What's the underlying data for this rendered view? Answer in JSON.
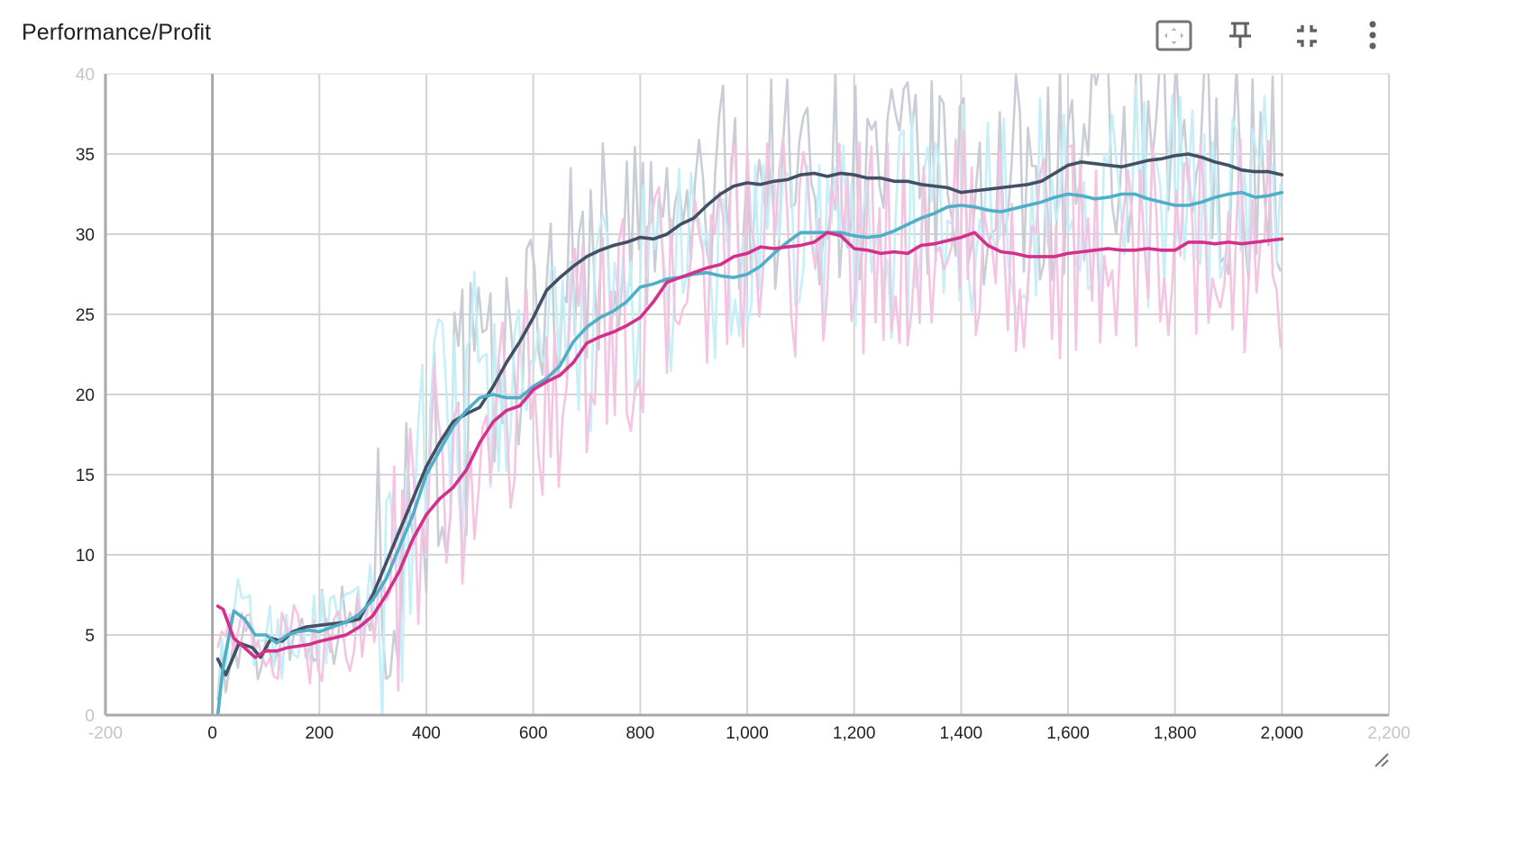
{
  "card": {
    "title": "Performance/Profit"
  },
  "toolbar": {
    "buttons": [
      {
        "name": "fit-domain-button",
        "icon": "fit-to-data-icon"
      },
      {
        "name": "pin-card-button",
        "icon": "pin-icon"
      },
      {
        "name": "collapse-card-button",
        "icon": "fullscreen-exit-icon"
      },
      {
        "name": "more-options-button",
        "icon": "more-vert-icon"
      }
    ]
  },
  "chart_data": {
    "type": "line",
    "title": "Performance/Profit",
    "xlabel": "",
    "ylabel": "",
    "xlim": [
      -200,
      2200
    ],
    "ylim": [
      0,
      40
    ],
    "x_ticks": [
      {
        "value": -200,
        "label": "-200",
        "faded": true
      },
      {
        "value": 0,
        "label": "0"
      },
      {
        "value": 200,
        "label": "200"
      },
      {
        "value": 400,
        "label": "400"
      },
      {
        "value": 600,
        "label": "600"
      },
      {
        "value": 800,
        "label": "800"
      },
      {
        "value": 1000,
        "label": "1,000"
      },
      {
        "value": 1200,
        "label": "1,200"
      },
      {
        "value": 1400,
        "label": "1,400"
      },
      {
        "value": 1600,
        "label": "1,600"
      },
      {
        "value": 1800,
        "label": "1,800"
      },
      {
        "value": 2000,
        "label": "2,000"
      },
      {
        "value": 2200,
        "label": "2,200",
        "faded": true
      }
    ],
    "y_ticks": [
      {
        "value": 0,
        "label": "0",
        "faded": true
      },
      {
        "value": 5,
        "label": "5"
      },
      {
        "value": 10,
        "label": "10"
      },
      {
        "value": 15,
        "label": "15"
      },
      {
        "value": 20,
        "label": "20"
      },
      {
        "value": 25,
        "label": "25"
      },
      {
        "value": 30,
        "label": "30"
      },
      {
        "value": 35,
        "label": "35"
      },
      {
        "value": 40,
        "label": "40",
        "faded": true
      }
    ],
    "grid": true,
    "legend": "none",
    "smoothed_series": [
      {
        "color": "#425066",
        "raw_color": "#c6cad3",
        "x": [
          10,
          25,
          50,
          75,
          90,
          110,
          130,
          150,
          175,
          200,
          225,
          250,
          275,
          300,
          325,
          350,
          375,
          400,
          425,
          450,
          475,
          500,
          525,
          550,
          575,
          600,
          625,
          650,
          675,
          700,
          725,
          750,
          775,
          800,
          825,
          850,
          875,
          900,
          925,
          950,
          975,
          1000,
          1025,
          1050,
          1075,
          1100,
          1125,
          1150,
          1175,
          1200,
          1225,
          1250,
          1275,
          1300,
          1325,
          1350,
          1375,
          1400,
          1425,
          1450,
          1475,
          1500,
          1525,
          1550,
          1575,
          1600,
          1625,
          1650,
          1675,
          1700,
          1725,
          1750,
          1775,
          1800,
          1825,
          1850,
          1875,
          1900,
          1925,
          1950,
          1975,
          2000
        ],
        "y": [
          3.5,
          2.5,
          4.5,
          4.2,
          3.6,
          4.8,
          4.6,
          5.2,
          5.5,
          5.6,
          5.7,
          5.8,
          6.0,
          7.5,
          9.5,
          11.5,
          13.5,
          15.5,
          17.0,
          18.3,
          18.8,
          19.2,
          20.5,
          22.0,
          23.3,
          24.8,
          26.5,
          27.3,
          28.0,
          28.6,
          29.0,
          29.3,
          29.5,
          29.8,
          29.7,
          30.0,
          30.6,
          31.0,
          31.8,
          32.5,
          33.0,
          33.2,
          33.1,
          33.3,
          33.4,
          33.7,
          33.8,
          33.6,
          33.8,
          33.7,
          33.5,
          33.5,
          33.3,
          33.3,
          33.1,
          33.0,
          32.9,
          32.6,
          32.7,
          32.8,
          32.9,
          33.0,
          33.1,
          33.3,
          33.8,
          34.3,
          34.5,
          34.4,
          34.3,
          34.2,
          34.4,
          34.6,
          34.7,
          34.9,
          35.0,
          34.8,
          34.5,
          34.3,
          34.0,
          33.9,
          33.9,
          33.7
        ]
      },
      {
        "color": "#4eafc6",
        "raw_color": "#c3eef7",
        "x": [
          10,
          20,
          40,
          60,
          80,
          100,
          120,
          140,
          160,
          180,
          200,
          225,
          250,
          275,
          300,
          325,
          350,
          375,
          400,
          425,
          450,
          475,
          500,
          525,
          550,
          575,
          600,
          625,
          650,
          675,
          700,
          725,
          750,
          775,
          800,
          825,
          850,
          875,
          900,
          925,
          950,
          975,
          1000,
          1025,
          1050,
          1075,
          1100,
          1125,
          1150,
          1175,
          1200,
          1225,
          1250,
          1275,
          1300,
          1325,
          1350,
          1375,
          1400,
          1425,
          1450,
          1475,
          1500,
          1525,
          1550,
          1575,
          1600,
          1625,
          1650,
          1675,
          1700,
          1725,
          1750,
          1775,
          1800,
          1825,
          1850,
          1875,
          1900,
          1925,
          1950,
          1975,
          2000
        ],
        "y": [
          0.0,
          3.0,
          6.5,
          6.0,
          5.0,
          5.0,
          4.5,
          5.0,
          5.2,
          5.3,
          5.2,
          5.5,
          5.8,
          6.3,
          7.2,
          8.5,
          10.5,
          12.5,
          15.0,
          16.5,
          18.0,
          19.0,
          19.8,
          20.0,
          19.8,
          19.8,
          20.5,
          21.0,
          21.8,
          23.3,
          24.2,
          24.8,
          25.2,
          25.8,
          26.7,
          26.9,
          27.2,
          27.3,
          27.5,
          27.6,
          27.4,
          27.3,
          27.5,
          28.0,
          28.8,
          29.5,
          30.1,
          30.1,
          30.1,
          30.1,
          29.9,
          29.8,
          29.9,
          30.2,
          30.6,
          31.0,
          31.3,
          31.7,
          31.8,
          31.7,
          31.5,
          31.4,
          31.6,
          31.8,
          32.0,
          32.3,
          32.5,
          32.4,
          32.2,
          32.3,
          32.5,
          32.5,
          32.2,
          32.0,
          31.8,
          31.8,
          32.0,
          32.3,
          32.5,
          32.6,
          32.3,
          32.4,
          32.6
        ]
      },
      {
        "color": "#d2308b",
        "raw_color": "#f2c2e0",
        "x": [
          10,
          20,
          40,
          60,
          80,
          100,
          120,
          140,
          160,
          180,
          200,
          225,
          250,
          275,
          300,
          325,
          350,
          375,
          400,
          425,
          450,
          475,
          500,
          525,
          550,
          575,
          600,
          625,
          650,
          675,
          700,
          725,
          750,
          775,
          800,
          825,
          850,
          875,
          900,
          925,
          950,
          975,
          1000,
          1025,
          1050,
          1075,
          1100,
          1125,
          1150,
          1175,
          1200,
          1225,
          1250,
          1275,
          1300,
          1325,
          1350,
          1375,
          1400,
          1425,
          1450,
          1475,
          1500,
          1525,
          1550,
          1575,
          1600,
          1625,
          1650,
          1675,
          1700,
          1725,
          1750,
          1775,
          1800,
          1825,
          1850,
          1875,
          1900,
          1925,
          1950,
          1975,
          2000
        ],
        "y": [
          6.8,
          6.6,
          4.8,
          4.2,
          3.6,
          4.0,
          4.0,
          4.2,
          4.3,
          4.4,
          4.6,
          4.8,
          5.0,
          5.5,
          6.2,
          7.5,
          9.0,
          11.0,
          12.5,
          13.5,
          14.2,
          15.3,
          17.0,
          18.3,
          19.0,
          19.3,
          20.3,
          20.8,
          21.2,
          22.0,
          23.2,
          23.6,
          23.9,
          24.3,
          24.8,
          25.8,
          27.0,
          27.3,
          27.6,
          27.9,
          28.1,
          28.6,
          28.8,
          29.2,
          29.1,
          29.2,
          29.3,
          29.5,
          30.1,
          29.9,
          29.1,
          29.0,
          28.8,
          28.9,
          28.8,
          29.3,
          29.4,
          29.6,
          29.8,
          30.1,
          29.3,
          28.9,
          28.8,
          28.6,
          28.6,
          28.6,
          28.8,
          28.9,
          29.0,
          29.1,
          29.0,
          29.0,
          29.1,
          29.0,
          29.0,
          29.5,
          29.5,
          29.4,
          29.5,
          29.4,
          29.5,
          29.6,
          29.7
        ]
      }
    ]
  }
}
